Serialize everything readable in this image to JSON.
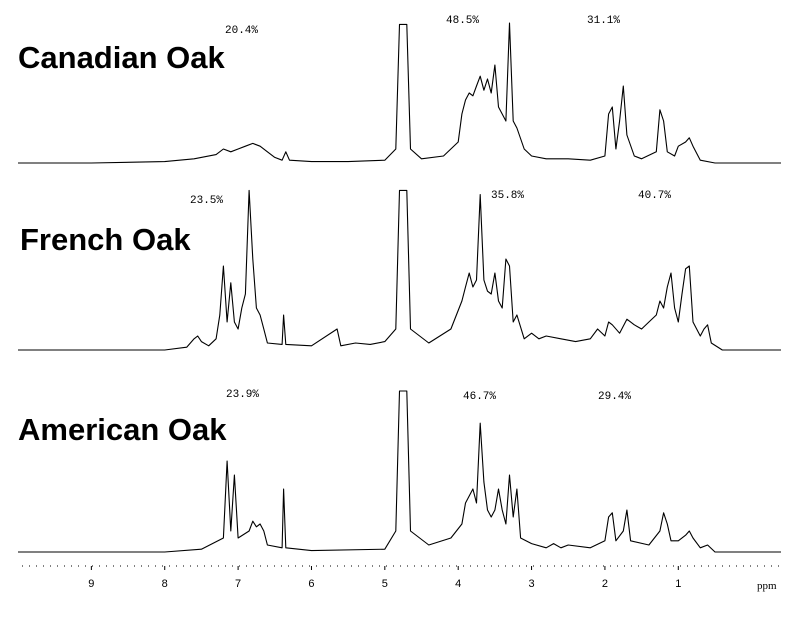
{
  "chart_data": [
    {
      "type": "line",
      "title": "Canadian Oak",
      "color": "#000000",
      "xlim": [
        10,
        -0.4
      ],
      "ylim": [
        0,
        115
      ],
      "annotations": [
        "20.4%",
        "48.5%",
        "31.1%"
      ],
      "x": [
        10,
        9,
        8,
        7.6,
        7.3,
        7.2,
        7.1,
        7.0,
        6.9,
        6.8,
        6.7,
        6.6,
        6.5,
        6.4,
        6.35,
        6.3,
        6,
        5.5,
        5,
        4.85,
        4.8,
        4.7,
        4.65,
        4.5,
        4.2,
        4.0,
        3.95,
        3.9,
        3.85,
        3.8,
        3.75,
        3.7,
        3.65,
        3.6,
        3.55,
        3.5,
        3.45,
        3.4,
        3.35,
        3.3,
        3.25,
        3.2,
        3.1,
        3.0,
        2.8,
        2.5,
        2.2,
        2.0,
        1.95,
        1.9,
        1.85,
        1.8,
        1.75,
        1.7,
        1.6,
        1.5,
        1.3,
        1.25,
        1.2,
        1.15,
        1.05,
        1.0,
        0.9,
        0.85,
        0.8,
        0.7,
        0.5,
        0,
        -0.4
      ],
      "values": [
        0,
        0,
        1,
        3,
        6,
        10,
        8,
        10,
        12,
        14,
        12,
        8,
        4,
        2,
        8,
        2,
        1,
        1,
        2,
        10,
        99,
        99,
        10,
        3,
        5,
        15,
        35,
        45,
        50,
        48,
        55,
        62,
        52,
        60,
        50,
        70,
        40,
        35,
        30,
        100,
        30,
        25,
        10,
        5,
        3,
        3,
        2,
        5,
        35,
        40,
        10,
        30,
        55,
        20,
        5,
        3,
        8,
        38,
        30,
        8,
        5,
        12,
        15,
        18,
        12,
        2,
        0,
        0,
        0
      ]
    },
    {
      "type": "line",
      "title": "French Oak",
      "color": "#000000",
      "xlim": [
        10,
        -0.4
      ],
      "ylim": [
        0,
        115
      ],
      "annotations": [
        "23.5%",
        "35.8%",
        "40.7%"
      ],
      "x": [
        10,
        8,
        7.7,
        7.6,
        7.55,
        7.5,
        7.4,
        7.3,
        7.25,
        7.2,
        7.15,
        7.1,
        7.05,
        7.0,
        6.95,
        6.9,
        6.85,
        6.8,
        6.75,
        6.7,
        6.65,
        6.6,
        6.4,
        6.38,
        6.35,
        6.0,
        5.65,
        5.6,
        5.4,
        5.2,
        5.0,
        4.85,
        4.8,
        4.7,
        4.65,
        4.4,
        4.1,
        3.95,
        3.9,
        3.85,
        3.8,
        3.75,
        3.7,
        3.65,
        3.6,
        3.55,
        3.5,
        3.45,
        3.4,
        3.35,
        3.3,
        3.25,
        3.2,
        3.1,
        3.0,
        2.9,
        2.8,
        2.6,
        2.4,
        2.2,
        2.1,
        2.0,
        1.95,
        1.9,
        1.8,
        1.7,
        1.6,
        1.5,
        1.4,
        1.3,
        1.25,
        1.2,
        1.15,
        1.1,
        1.05,
        1.0,
        0.95,
        0.9,
        0.85,
        0.8,
        0.7,
        0.65,
        0.6,
        0.55,
        0.4,
        -0.4
      ],
      "values": [
        0,
        0,
        2,
        8,
        10,
        6,
        3,
        8,
        25,
        60,
        20,
        48,
        20,
        15,
        30,
        40,
        114,
        65,
        30,
        25,
        15,
        5,
        4,
        25,
        4,
        3,
        15,
        3,
        5,
        4,
        6,
        15,
        114,
        114,
        15,
        5,
        15,
        35,
        45,
        55,
        45,
        50,
        111,
        50,
        42,
        40,
        55,
        35,
        30,
        65,
        60,
        20,
        25,
        8,
        12,
        8,
        10,
        8,
        6,
        8,
        15,
        10,
        20,
        18,
        12,
        22,
        18,
        15,
        20,
        25,
        35,
        30,
        45,
        55,
        30,
        20,
        40,
        58,
        60,
        20,
        10,
        15,
        18,
        5,
        0,
        0
      ]
    },
    {
      "type": "line",
      "title": "American Oak",
      "color": "#000000",
      "xlim": [
        10,
        -0.4
      ],
      "ylim": [
        0,
        115
      ],
      "annotations": [
        "23.9%",
        "46.7%",
        "29.4%"
      ],
      "xlabel": "ppm",
      "xticks": [
        9,
        8,
        7,
        6,
        5,
        4,
        3,
        2,
        1
      ],
      "x": [
        10,
        8,
        7.5,
        7.2,
        7.15,
        7.1,
        7.05,
        7.0,
        6.85,
        6.8,
        6.75,
        6.7,
        6.65,
        6.6,
        6.4,
        6.38,
        6.35,
        6.0,
        5.0,
        4.85,
        4.8,
        4.7,
        4.65,
        4.4,
        4.1,
        3.95,
        3.9,
        3.85,
        3.8,
        3.75,
        3.7,
        3.65,
        3.6,
        3.55,
        3.5,
        3.45,
        3.4,
        3.35,
        3.3,
        3.25,
        3.2,
        3.15,
        3.0,
        2.8,
        2.7,
        2.6,
        2.5,
        2.2,
        2.0,
        1.95,
        1.9,
        1.85,
        1.75,
        1.7,
        1.65,
        1.4,
        1.25,
        1.2,
        1.15,
        1.1,
        1.0,
        0.9,
        0.85,
        0.8,
        0.7,
        0.6,
        0.5,
        -0.4
      ],
      "values": [
        0,
        0,
        2,
        10,
        65,
        15,
        55,
        10,
        15,
        22,
        18,
        20,
        15,
        5,
        3,
        45,
        3,
        1,
        2,
        15,
        115,
        115,
        15,
        5,
        10,
        20,
        35,
        40,
        45,
        35,
        92,
        50,
        30,
        25,
        30,
        45,
        30,
        20,
        55,
        25,
        45,
        10,
        6,
        3,
        6,
        3,
        5,
        3,
        8,
        25,
        28,
        8,
        15,
        30,
        8,
        5,
        15,
        28,
        20,
        8,
        8,
        12,
        15,
        10,
        3,
        5,
        0,
        0
      ]
    }
  ]
}
